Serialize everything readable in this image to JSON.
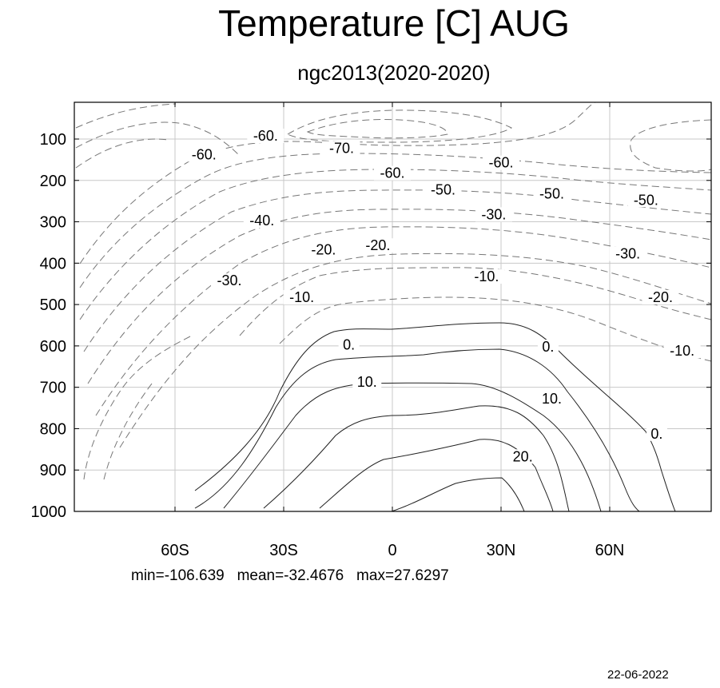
{
  "title": "Temperature [C] AUG",
  "subtitle": "ngc2013(2020-2020)",
  "stats": {
    "min": "min=-106.639",
    "mean": "mean=-32.4676",
    "max": "max=27.6297"
  },
  "date": "22-06-2022",
  "chart_data": {
    "type": "contour",
    "title": "Temperature [C] AUG",
    "subtitle": "ngc2013(2020-2020)",
    "x_ticks": [
      {
        "value": -60,
        "label": "60S"
      },
      {
        "value": -30,
        "label": "30S"
      },
      {
        "value": 0,
        "label": "0"
      },
      {
        "value": 30,
        "label": "30N"
      },
      {
        "value": 60,
        "label": "60N"
      }
    ],
    "y_ticks": [
      100,
      200,
      300,
      400,
      500,
      600,
      700,
      800,
      900,
      1000
    ],
    "xlim": [
      -90,
      90
    ],
    "ylim": [
      1000,
      10
    ],
    "grid": true,
    "negative_contours": "dashed",
    "contour_interval": 10,
    "contour_labels": [
      {
        "lat": -12,
        "p": 605,
        "text": "0."
      },
      {
        "lat": 43,
        "p": 610,
        "text": "0."
      },
      {
        "lat": 73,
        "p": 820,
        "text": "0."
      },
      {
        "lat": -7,
        "p": 695,
        "text": "10."
      },
      {
        "lat": 44,
        "p": 735,
        "text": "10."
      },
      {
        "lat": 36,
        "p": 875,
        "text": "20."
      },
      {
        "lat": -25,
        "p": 490,
        "text": "-10."
      },
      {
        "lat": 26,
        "p": 440,
        "text": "-10."
      },
      {
        "lat": 80,
        "p": 620,
        "text": "-10."
      },
      {
        "lat": -19,
        "p": 375,
        "text": "-20."
      },
      {
        "lat": -4,
        "p": 365,
        "text": "-20."
      },
      {
        "lat": 74,
        "p": 490,
        "text": "-20."
      },
      {
        "lat": -45,
        "p": 450,
        "text": "-30."
      },
      {
        "lat": 28,
        "p": 290,
        "text": "-30."
      },
      {
        "lat": 65,
        "p": 385,
        "text": "-30."
      },
      {
        "lat": -36,
        "p": 305,
        "text": "-40."
      },
      {
        "lat": 14,
        "p": 230,
        "text": "-50."
      },
      {
        "lat": 44,
        "p": 240,
        "text": "-50."
      },
      {
        "lat": 70,
        "p": 255,
        "text": "-50."
      },
      {
        "lat": -52,
        "p": 145,
        "text": "-60."
      },
      {
        "lat": -35,
        "p": 100,
        "text": "-60."
      },
      {
        "lat": 0,
        "p": 190,
        "text": "-60."
      },
      {
        "lat": 30,
        "p": 165,
        "text": "-60."
      },
      {
        "lat": -14,
        "p": 130,
        "text": "-70."
      }
    ]
  }
}
